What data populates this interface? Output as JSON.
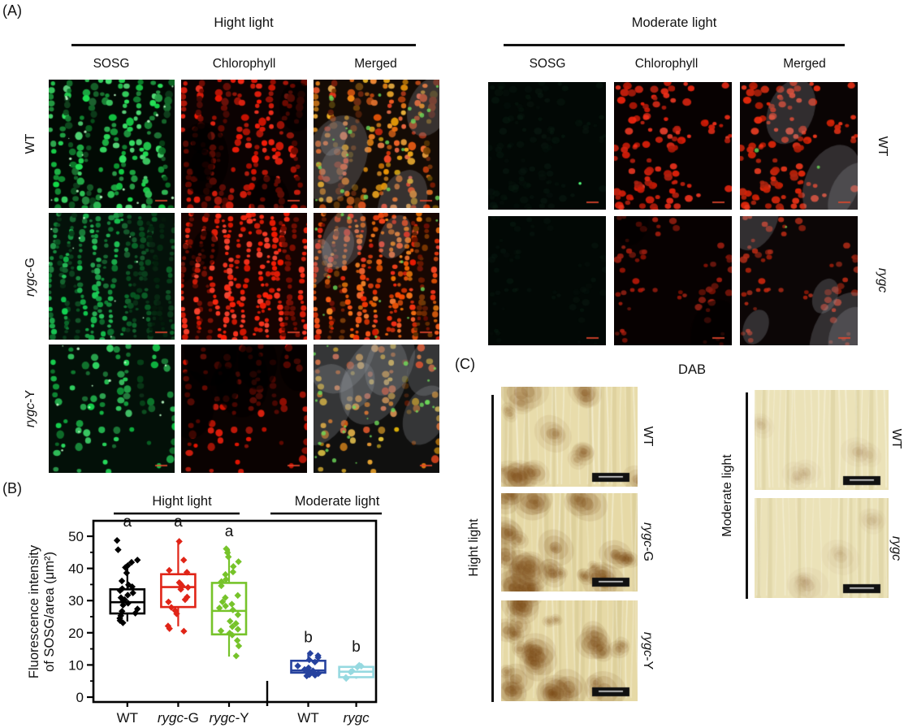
{
  "panel_a": {
    "label": "(A)",
    "groups": [
      {
        "title": "Hight light",
        "columns": [
          "SOSG",
          "Chlorophyll",
          "Merged"
        ],
        "rows": [
          {
            "label_italic": "",
            "label_plain": "WT",
            "tiles": [
              "sosg-bright",
              "chl-bright",
              "merged-bright"
            ]
          },
          {
            "label_italic": "rygc",
            "label_plain": "-G",
            "tiles": [
              "sosg-dense",
              "chl-dense",
              "merged-dense"
            ]
          },
          {
            "label_italic": "rygc",
            "label_plain": "-Y",
            "tiles": [
              "sosg-sparse",
              "chl-sparse",
              "merged-sparse"
            ]
          }
        ]
      },
      {
        "title": "Moderate light",
        "columns": [
          "SOSG",
          "Chlorophyll",
          "Merged"
        ],
        "rows": [
          {
            "label_italic": "",
            "label_plain": "WT",
            "tiles": [
              "sosg-dark-a",
              "chl-cells",
              "merged-cells"
            ]
          },
          {
            "label_italic": "rygc",
            "label_plain": "",
            "tiles": [
              "sosg-dark-b",
              "chl-dim",
              "merged-dim"
            ]
          }
        ]
      }
    ]
  },
  "panel_b": {
    "label": "(B)"
  },
  "chart_data": {
    "type": "boxplot-scatter",
    "ylabel_line1": "Fluorescence intensity",
    "ylabel_line2": "of SOSG/area (μm²)",
    "ylim": [
      0,
      55
    ],
    "yticks": [
      0,
      10,
      20,
      30,
      40,
      50
    ],
    "yticks_minor": [
      5,
      15,
      25,
      35,
      45
    ],
    "grid": false,
    "axis_divider_between_groups": true,
    "group_headers": [
      {
        "label": "Hight light",
        "categories": [
          0,
          1,
          2
        ]
      },
      {
        "label": "Moderate light",
        "categories": [
          3,
          4
        ]
      }
    ],
    "labels": [
      {
        "i": "",
        "p": "WT"
      },
      {
        "i": "rygc",
        "p": "-G"
      },
      {
        "i": "rygc",
        "p": "-Y"
      },
      {
        "i": "",
        "p": "WT"
      },
      {
        "i": "rygc",
        "p": ""
      }
    ],
    "series": [
      {
        "name": "WT",
        "condition": "Hight light",
        "color": "#000000",
        "sig": "a",
        "sig_y": 53,
        "box": {
          "q1": 26,
          "median": 29.5,
          "q3": 33.5,
          "whisker_low": 23.5,
          "whisker_high": 41
        },
        "points": [
          48.7,
          45.8,
          42.6,
          41.9,
          40.9,
          40.3,
          38.6,
          36.1,
          34.9,
          34.3,
          33.7,
          33.1,
          32.4,
          31.7,
          30.9,
          30.3,
          29.8,
          29.2,
          28.6,
          27.4,
          26.7,
          26.1,
          25.3,
          24.5,
          23.8,
          23.1
        ]
      },
      {
        "name": "rygc-G",
        "condition": "Hight light",
        "color": "#e02417",
        "sig": "a",
        "sig_y": 53,
        "box": {
          "q1": 28,
          "median": 34.2,
          "q3": 38.2,
          "whisker_low": 22,
          "whisker_high": 48.3
        },
        "points": [
          48.4,
          42.6,
          39.4,
          38.8,
          35.6,
          35.1,
          34.6,
          34.1,
          33.5,
          31.1,
          30.3,
          29.6,
          27.9,
          26.9,
          25.9,
          22.1,
          21.3,
          20.5
        ]
      },
      {
        "name": "rygc-Y",
        "condition": "Hight light",
        "color": "#76c32a",
        "sig": "a",
        "sig_y": 50,
        "box": {
          "q1": 19.5,
          "median": 26.8,
          "q3": 35.5,
          "whisker_low": 12.6,
          "whisker_high": 46
        },
        "points": [
          46.1,
          44.9,
          43.6,
          42.1,
          40.6,
          38.9,
          38.1,
          36.6,
          35.9,
          34.6,
          31.6,
          30.9,
          29.6,
          28.9,
          28.3,
          27.7,
          27.1,
          25.6,
          23.6,
          22.9,
          21.9,
          21.1,
          20.6,
          19.9,
          19.3,
          17.6,
          15.9,
          12.8
        ]
      },
      {
        "name": "WT",
        "condition": "Moderate light",
        "color": "#26429e",
        "sig": "b",
        "sig_y": 17,
        "box": {
          "q1": 7.6,
          "median": 8.3,
          "q3": 11.3,
          "whisker_low": 6.6,
          "whisker_high": 13.6
        },
        "points": [
          13.6,
          12.9,
          12.3,
          11.6,
          10.9,
          9.7,
          9.1,
          8.6,
          8.2,
          7.9,
          7.6,
          7.3,
          7.0,
          6.8,
          6.6
        ]
      },
      {
        "name": "rygc",
        "condition": "Moderate light",
        "color": "#96d9e0",
        "sig": "b",
        "sig_y": 14.2,
        "box": {
          "q1": 6.2,
          "median": 7.9,
          "q3": 9.4,
          "whisker_low": 5.7,
          "whisker_high": 9.9
        },
        "points": [
          9.9,
          9.6,
          9.3,
          8.1,
          7.8,
          6.1,
          5.8
        ]
      }
    ]
  },
  "panel_c": {
    "label": "(C)",
    "title": "DAB",
    "groups": [
      {
        "title": "Hight light",
        "rows": [
          {
            "label_italic": "",
            "label_plain": "WT",
            "style": "dab-medium"
          },
          {
            "label_italic": "rygc",
            "label_plain": "-G",
            "style": "dab-strong"
          },
          {
            "label_italic": "rygc",
            "label_plain": "-Y",
            "style": "dab-strong"
          }
        ]
      },
      {
        "title": "Moderate light",
        "rows": [
          {
            "label_italic": "",
            "label_plain": "WT",
            "style": "dab-faint"
          },
          {
            "label_italic": "rygc",
            "label_plain": "",
            "style": "dab-faint"
          }
        ]
      }
    ]
  }
}
